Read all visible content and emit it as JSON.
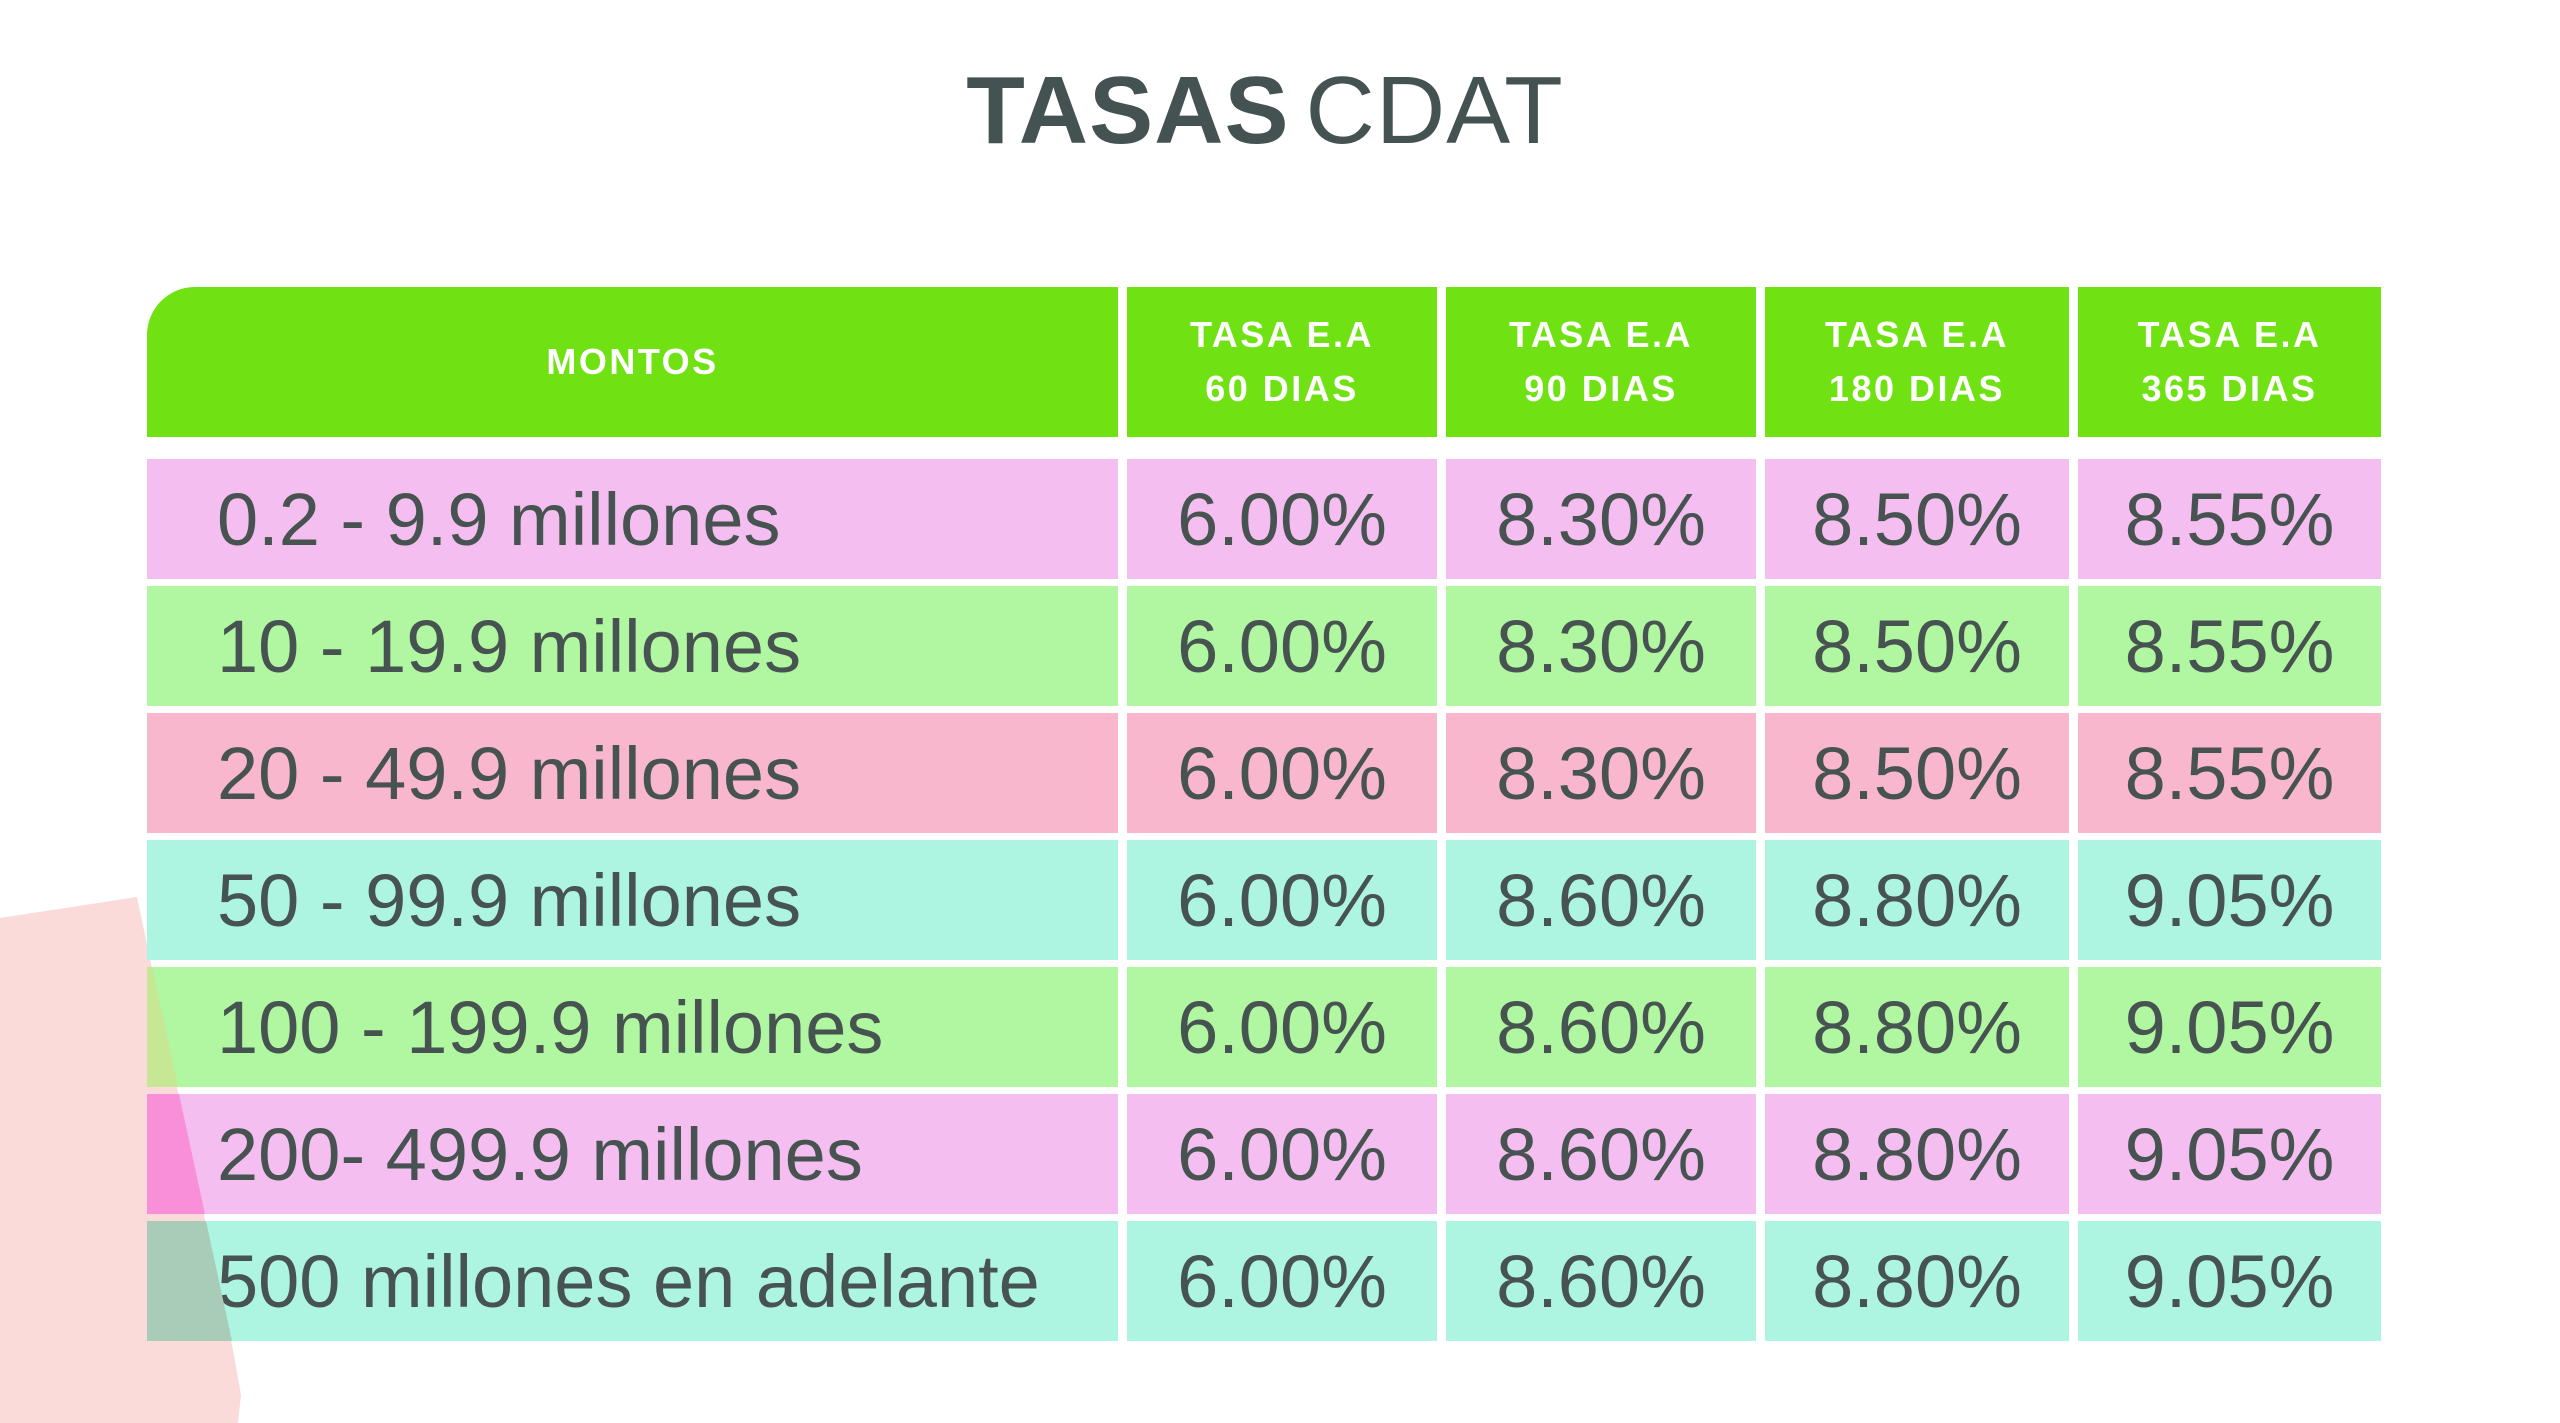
{
  "title": {
    "bold": "TASAS",
    "regular": "CDAT"
  },
  "table": {
    "header": [
      {
        "line1": "MONTOS",
        "line2": ""
      },
      {
        "line1": "TASA E.A",
        "line2": "60 DIAS"
      },
      {
        "line1": "TASA E.A",
        "line2": "90 DIAS"
      },
      {
        "line1": "TASA E.A",
        "line2": "180 DIAS"
      },
      {
        "line1": "TASA E.A",
        "line2": "365 DIAS"
      }
    ],
    "rows": [
      {
        "monto": "0.2 - 9.9 millones",
        "rate_60": "6.00%",
        "rate_90": "8.30%",
        "rate_180": "8.50%",
        "rate_365": "8.55%"
      },
      {
        "monto": "10 - 19.9 millones",
        "rate_60": "6.00%",
        "rate_90": "8.30%",
        "rate_180": "8.50%",
        "rate_365": "8.55%"
      },
      {
        "monto": "20 - 49.9 millones",
        "rate_60": "6.00%",
        "rate_90": "8.30%",
        "rate_180": "8.50%",
        "rate_365": "8.55%"
      },
      {
        "monto": "50 - 99.9 millones",
        "rate_60": "6.00%",
        "rate_90": "8.60%",
        "rate_180": "8.80%",
        "rate_365": "9.05%"
      },
      {
        "monto": "100 - 199.9 millones",
        "rate_60": "6.00%",
        "rate_90": "8.60%",
        "rate_180": "8.80%",
        "rate_365": "9.05%"
      },
      {
        "monto": "200- 499.9 millones",
        "rate_60": "6.00%",
        "rate_90": "8.60%",
        "rate_180": "8.80%",
        "rate_365": "9.05%"
      },
      {
        "monto": "500 millones en adelante",
        "rate_60": "6.00%",
        "rate_90": "8.60%",
        "rate_180": "8.80%",
        "rate_365": "9.05%"
      }
    ]
  },
  "colors": {
    "header_green": "#70E214",
    "row_orchid": "#F4BFF0",
    "row_green": "#B1F6A0",
    "row_pink": "#F9B7CE",
    "row_aqua": "#AEF5E1",
    "text_slate": "#475351",
    "blob_pink": "#FBDBD9",
    "patch_olive": "#C6E894",
    "patch_magenta": "#FA8FD9",
    "patch_sage": "#A9CCB8"
  },
  "chart_data": {
    "type": "table",
    "title": "TASAS CDAT",
    "columns": [
      "MONTOS",
      "TASA E.A 60 DIAS",
      "TASA E.A 90 DIAS",
      "TASA E.A 180 DIAS",
      "TASA E.A 365 DIAS"
    ],
    "rows": [
      [
        "0.2 - 9.9 millones",
        "6.00%",
        "8.30%",
        "8.50%",
        "8.55%"
      ],
      [
        "10 - 19.9 millones",
        "6.00%",
        "8.30%",
        "8.50%",
        "8.55%"
      ],
      [
        "20 - 49.9 millones",
        "6.00%",
        "8.30%",
        "8.50%",
        "8.55%"
      ],
      [
        "50 - 99.9 millones",
        "6.00%",
        "8.60%",
        "8.80%",
        "9.05%"
      ],
      [
        "100 - 199.9 millones",
        "6.00%",
        "8.60%",
        "8.80%",
        "9.05%"
      ],
      [
        "200- 499.9 millones",
        "6.00%",
        "8.60%",
        "8.80%",
        "9.05%"
      ],
      [
        "500 millones en adelante",
        "6.00%",
        "8.60%",
        "8.80%",
        "9.05%"
      ]
    ]
  }
}
